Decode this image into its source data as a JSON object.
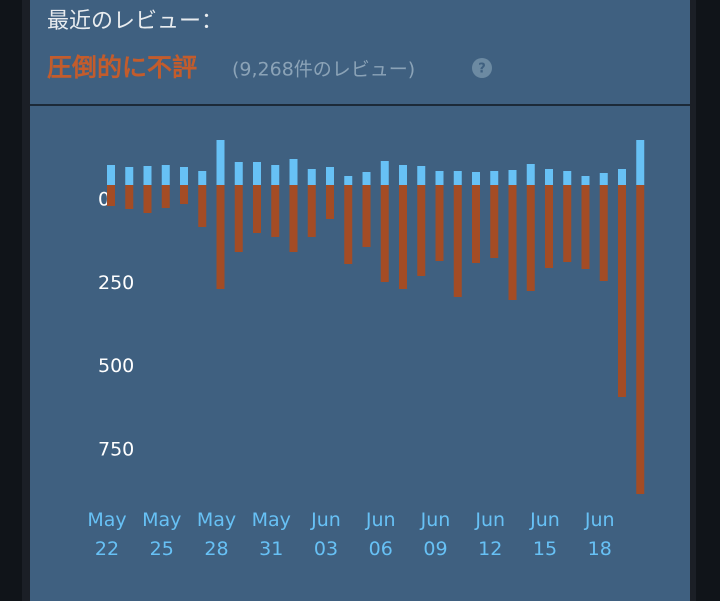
{
  "header": {
    "title": "最近のレビュー：",
    "rating": "圧倒的に不評",
    "count": "(9,268件のレビュー)",
    "help": "?"
  },
  "chart_data": {
    "type": "bar",
    "categories": [
      "May 22",
      null,
      null,
      "May 25",
      null,
      null,
      "May 28",
      null,
      null,
      "May 31",
      null,
      null,
      "Jun 03",
      null,
      null,
      "Jun 06",
      null,
      null,
      "Jun 09",
      null,
      null,
      "Jun 12",
      null,
      null,
      "Jun 15",
      null,
      null,
      "Jun 18",
      null,
      null
    ],
    "series": [
      {
        "color": "#67c1f5",
        "values": [
          60,
          54,
          57,
          60,
          54,
          42,
          135,
          69,
          69,
          60,
          78,
          48,
          54,
          27,
          39,
          72,
          60,
          57,
          42,
          42,
          39,
          42,
          45,
          63,
          48,
          42,
          27,
          36,
          48,
          135
        ]
      },
      {
        "color": "#a34c25",
        "values": [
          -63,
          -72,
          -84,
          -69,
          -57,
          -126,
          -312,
          -201,
          -144,
          -156,
          -201,
          -156,
          -102,
          -237,
          -186,
          -291,
          -312,
          -273,
          -228,
          -336,
          -234,
          -219,
          -345,
          -318,
          -249,
          -231,
          -252,
          -288,
          -636,
          -927
        ]
      }
    ],
    "ylim": [
      -945,
      195
    ],
    "yticks": [
      0,
      {
        "value": -250,
        "label": "250"
      },
      {
        "value": -500,
        "label": "500"
      },
      {
        "value": -750,
        "label": "750"
      }
    ]
  }
}
